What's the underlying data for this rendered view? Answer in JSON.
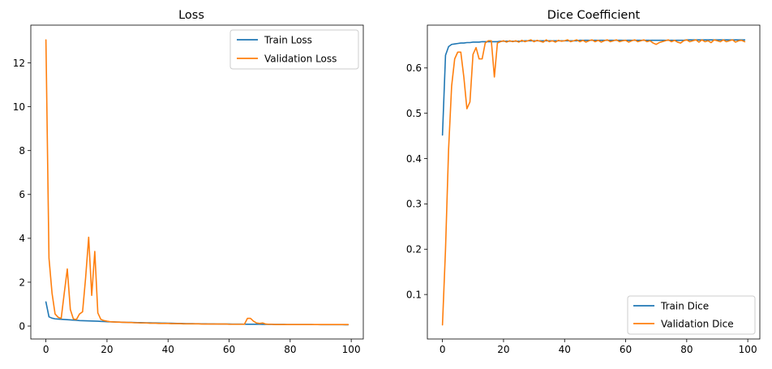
{
  "chart_data": [
    {
      "type": "line",
      "title": "Loss",
      "xlabel": "",
      "ylabel": "",
      "xlim": [
        -4.95,
        103.95
      ],
      "ylim": [
        -0.59,
        13.72
      ],
      "x_ticks": [
        0,
        20,
        40,
        60,
        80,
        100
      ],
      "y_ticks": [
        0,
        2,
        4,
        6,
        8,
        10,
        12
      ],
      "grid": false,
      "legend": "top-right",
      "series": [
        {
          "name": "Train Loss",
          "color": "#1f77b4",
          "x": [
            0,
            1,
            2,
            3,
            4,
            5,
            6,
            7,
            8,
            9,
            10,
            11,
            12,
            13,
            14,
            15,
            16,
            17,
            18,
            19,
            20,
            21,
            22,
            23,
            24,
            25,
            26,
            27,
            28,
            29,
            30,
            31,
            32,
            33,
            34,
            35,
            36,
            37,
            38,
            39,
            40,
            41,
            42,
            43,
            44,
            45,
            46,
            47,
            48,
            49,
            50,
            51,
            52,
            53,
            54,
            55,
            56,
            57,
            58,
            59,
            60,
            61,
            62,
            63,
            64,
            65,
            66,
            67,
            68,
            69,
            70,
            71,
            72,
            73,
            74,
            75,
            76,
            77,
            78,
            79,
            80,
            81,
            82,
            83,
            84,
            85,
            86,
            87,
            88,
            89,
            90,
            91,
            92,
            93,
            94,
            95,
            96,
            97,
            98,
            99
          ],
          "y": [
            1.1,
            0.42,
            0.36,
            0.33,
            0.32,
            0.31,
            0.3,
            0.29,
            0.28,
            0.27,
            0.26,
            0.25,
            0.245,
            0.24,
            0.235,
            0.23,
            0.225,
            0.22,
            0.21,
            0.205,
            0.2,
            0.195,
            0.19,
            0.185,
            0.18,
            0.175,
            0.17,
            0.168,
            0.165,
            0.162,
            0.158,
            0.155,
            0.152,
            0.15,
            0.147,
            0.144,
            0.141,
            0.138,
            0.135,
            0.132,
            0.13,
            0.127,
            0.124,
            0.121,
            0.118,
            0.115,
            0.113,
            0.111,
            0.109,
            0.107,
            0.105,
            0.103,
            0.101,
            0.099,
            0.097,
            0.095,
            0.094,
            0.093,
            0.092,
            0.091,
            0.09,
            0.089,
            0.088,
            0.087,
            0.086,
            0.085,
            0.084,
            0.083,
            0.082,
            0.081,
            0.08,
            0.079,
            0.078,
            0.077,
            0.076,
            0.075,
            0.074,
            0.073,
            0.072,
            0.071,
            0.07,
            0.07,
            0.069,
            0.069,
            0.068,
            0.068,
            0.067,
            0.067,
            0.066,
            0.066,
            0.065,
            0.065,
            0.064,
            0.064,
            0.063,
            0.063,
            0.062,
            0.062,
            0.061,
            0.061
          ]
        },
        {
          "name": "Validation Loss",
          "color": "#ff7f0e",
          "x": [
            0,
            1,
            2,
            3,
            4,
            5,
            6,
            7,
            8,
            9,
            10,
            11,
            12,
            13,
            14,
            15,
            16,
            17,
            18,
            19,
            20,
            21,
            22,
            23,
            24,
            25,
            26,
            27,
            28,
            29,
            30,
            31,
            32,
            33,
            34,
            35,
            36,
            37,
            38,
            39,
            40,
            41,
            42,
            43,
            44,
            45,
            46,
            47,
            48,
            49,
            50,
            51,
            52,
            53,
            54,
            55,
            56,
            57,
            58,
            59,
            60,
            61,
            62,
            63,
            64,
            65,
            66,
            67,
            68,
            69,
            70,
            71,
            72,
            73,
            74,
            75,
            76,
            77,
            78,
            79,
            80,
            81,
            82,
            83,
            84,
            85,
            86,
            87,
            88,
            89,
            90,
            91,
            92,
            93,
            94,
            95,
            96,
            97,
            98,
            99
          ],
          "y": [
            13.05,
            3.1,
            1.5,
            0.55,
            0.4,
            0.35,
            1.5,
            2.6,
            0.75,
            0.32,
            0.3,
            0.55,
            0.65,
            2.2,
            4.05,
            1.4,
            3.4,
            0.6,
            0.3,
            0.25,
            0.22,
            0.2,
            0.19,
            0.18,
            0.18,
            0.17,
            0.17,
            0.16,
            0.16,
            0.15,
            0.15,
            0.14,
            0.14,
            0.14,
            0.13,
            0.13,
            0.13,
            0.12,
            0.12,
            0.12,
            0.12,
            0.11,
            0.11,
            0.11,
            0.11,
            0.1,
            0.1,
            0.1,
            0.1,
            0.1,
            0.1,
            0.09,
            0.09,
            0.09,
            0.09,
            0.09,
            0.09,
            0.09,
            0.09,
            0.09,
            0.08,
            0.08,
            0.08,
            0.08,
            0.08,
            0.08,
            0.35,
            0.35,
            0.22,
            0.14,
            0.12,
            0.14,
            0.09,
            0.08,
            0.08,
            0.07,
            0.07,
            0.07,
            0.07,
            0.07,
            0.07,
            0.07,
            0.07,
            0.07,
            0.07,
            0.07,
            0.07,
            0.07,
            0.07,
            0.07,
            0.07,
            0.07,
            0.07,
            0.07,
            0.07,
            0.07,
            0.07,
            0.07,
            0.07,
            0.07
          ]
        }
      ]
    },
    {
      "type": "line",
      "title": "Dice Coefficient",
      "xlabel": "",
      "ylabel": "",
      "xlim": [
        -4.95,
        103.95
      ],
      "ylim": [
        0.0018,
        0.6945
      ],
      "x_ticks": [
        0,
        20,
        40,
        60,
        80,
        100
      ],
      "y_ticks": [
        0.1,
        0.2,
        0.3,
        0.4,
        0.5,
        0.6
      ],
      "grid": false,
      "legend": "bottom-right",
      "series": [
        {
          "name": "Train Dice",
          "color": "#1f77b4",
          "x": [
            0,
            1,
            2,
            3,
            4,
            5,
            6,
            7,
            8,
            9,
            10,
            11,
            12,
            13,
            14,
            15,
            16,
            17,
            18,
            19,
            20,
            21,
            22,
            23,
            24,
            25,
            26,
            27,
            28,
            29,
            30,
            31,
            32,
            33,
            34,
            35,
            36,
            37,
            38,
            39,
            40,
            41,
            42,
            43,
            44,
            45,
            46,
            47,
            48,
            49,
            50,
            51,
            52,
            53,
            54,
            55,
            56,
            57,
            58,
            59,
            60,
            61,
            62,
            63,
            64,
            65,
            66,
            67,
            68,
            69,
            70,
            71,
            72,
            73,
            74,
            75,
            76,
            77,
            78,
            79,
            80,
            81,
            82,
            83,
            84,
            85,
            86,
            87,
            88,
            89,
            90,
            91,
            92,
            93,
            94,
            95,
            96,
            97,
            98,
            99
          ],
          "y": [
            0.452,
            0.628,
            0.647,
            0.652,
            0.653,
            0.654,
            0.655,
            0.655,
            0.656,
            0.656,
            0.657,
            0.657,
            0.657,
            0.658,
            0.658,
            0.658,
            0.658,
            0.658,
            0.658,
            0.659,
            0.659,
            0.659,
            0.659,
            0.659,
            0.659,
            0.659,
            0.659,
            0.66,
            0.66,
            0.66,
            0.66,
            0.66,
            0.66,
            0.66,
            0.66,
            0.66,
            0.66,
            0.66,
            0.66,
            0.66,
            0.66,
            0.66,
            0.66,
            0.66,
            0.66,
            0.661,
            0.661,
            0.661,
            0.661,
            0.661,
            0.661,
            0.661,
            0.661,
            0.661,
            0.661,
            0.661,
            0.661,
            0.661,
            0.661,
            0.661,
            0.661,
            0.661,
            0.661,
            0.661,
            0.661,
            0.661,
            0.661,
            0.661,
            0.661,
            0.661,
            0.661,
            0.661,
            0.661,
            0.661,
            0.661,
            0.661,
            0.661,
            0.661,
            0.661,
            0.661,
            0.662,
            0.662,
            0.662,
            0.662,
            0.662,
            0.662,
            0.662,
            0.662,
            0.662,
            0.662,
            0.662,
            0.662,
            0.662,
            0.662,
            0.662,
            0.662,
            0.662,
            0.662,
            0.662,
            0.662
          ]
        },
        {
          "name": "Validation Dice",
          "color": "#ff7f0e",
          "x": [
            0,
            1,
            2,
            3,
            4,
            5,
            6,
            7,
            8,
            9,
            10,
            11,
            12,
            13,
            14,
            15,
            16,
            17,
            18,
            19,
            20,
            21,
            22,
            23,
            24,
            25,
            26,
            27,
            28,
            29,
            30,
            31,
            32,
            33,
            34,
            35,
            36,
            37,
            38,
            39,
            40,
            41,
            42,
            43,
            44,
            45,
            46,
            47,
            48,
            49,
            50,
            51,
            52,
            53,
            54,
            55,
            56,
            57,
            58,
            59,
            60,
            61,
            62,
            63,
            64,
            65,
            66,
            67,
            68,
            69,
            70,
            71,
            72,
            73,
            74,
            75,
            76,
            77,
            78,
            79,
            80,
            81,
            82,
            83,
            84,
            85,
            86,
            87,
            88,
            89,
            90,
            91,
            92,
            93,
            94,
            95,
            96,
            97,
            98,
            99
          ],
          "y": [
            0.033,
            0.2,
            0.42,
            0.56,
            0.62,
            0.635,
            0.635,
            0.58,
            0.51,
            0.525,
            0.63,
            0.645,
            0.62,
            0.62,
            0.655,
            0.66,
            0.66,
            0.58,
            0.655,
            0.658,
            0.66,
            0.657,
            0.66,
            0.658,
            0.66,
            0.657,
            0.661,
            0.658,
            0.66,
            0.662,
            0.658,
            0.661,
            0.659,
            0.657,
            0.662,
            0.658,
            0.66,
            0.657,
            0.661,
            0.659,
            0.66,
            0.662,
            0.658,
            0.66,
            0.662,
            0.658,
            0.661,
            0.657,
            0.66,
            0.662,
            0.658,
            0.661,
            0.657,
            0.66,
            0.662,
            0.658,
            0.66,
            0.662,
            0.658,
            0.66,
            0.661,
            0.657,
            0.66,
            0.662,
            0.658,
            0.66,
            0.662,
            0.658,
            0.66,
            0.655,
            0.652,
            0.656,
            0.658,
            0.66,
            0.662,
            0.658,
            0.661,
            0.657,
            0.655,
            0.66,
            0.662,
            0.658,
            0.66,
            0.662,
            0.657,
            0.662,
            0.658,
            0.66,
            0.656,
            0.662,
            0.66,
            0.658,
            0.662,
            0.658,
            0.66,
            0.662,
            0.657,
            0.66,
            0.661,
            0.658
          ]
        }
      ]
    }
  ]
}
